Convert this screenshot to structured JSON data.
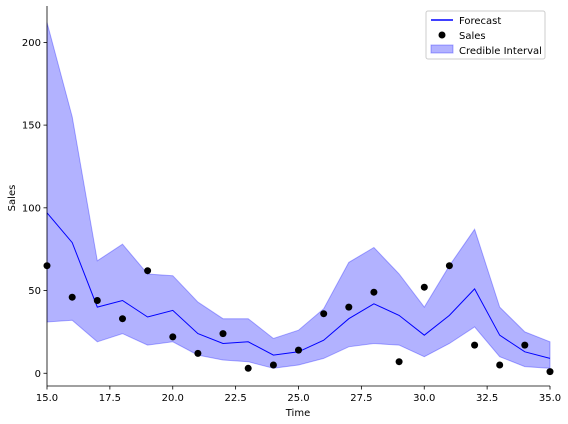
{
  "chart_data": {
    "type": "line",
    "title": "",
    "xlabel": "Time",
    "ylabel": "Sales",
    "xlim": [
      15,
      35
    ],
    "ylim": [
      -7.7,
      222
    ],
    "xticks": [
      15.0,
      17.5,
      20.0,
      22.5,
      25.0,
      27.5,
      30.0,
      32.5,
      35.0
    ],
    "xtick_labels": [
      "15.0",
      "17.5",
      "20.0",
      "22.5",
      "25.0",
      "27.5",
      "30.0",
      "32.5",
      "35.0"
    ],
    "yticks": [
      0,
      50,
      100,
      150,
      200
    ],
    "ytick_labels": [
      "0",
      "50",
      "100",
      "150",
      "200"
    ],
    "grid": false,
    "legend_position": "top-right",
    "series": [
      {
        "name": "Forecast",
        "kind": "line",
        "color": "#0000ff",
        "x": [
          15,
          16,
          17,
          18,
          19,
          20,
          21,
          22,
          23,
          24,
          25,
          26,
          27,
          28,
          29,
          30,
          31,
          32,
          33,
          34,
          35
        ],
        "y": [
          97,
          79,
          40,
          44,
          34,
          38,
          24,
          18,
          19,
          11,
          13,
          20,
          33,
          42,
          35,
          23,
          35,
          51,
          23,
          13,
          9
        ]
      },
      {
        "name": "Sales",
        "kind": "scatter",
        "color": "#000000",
        "x": [
          15,
          16,
          17,
          18,
          19,
          20,
          21,
          22,
          23,
          24,
          25,
          26,
          27,
          28,
          29,
          30,
          31,
          32,
          33,
          34,
          35
        ],
        "y": [
          65,
          46,
          44,
          33,
          62,
          22,
          12,
          24,
          3,
          5,
          14,
          36,
          40,
          49,
          7,
          52,
          65,
          17,
          5,
          17,
          1
        ]
      },
      {
        "name": "Credible Interval",
        "kind": "band",
        "color": "#0000ff",
        "x": [
          15,
          16,
          17,
          18,
          19,
          20,
          21,
          22,
          23,
          24,
          25,
          26,
          27,
          28,
          29,
          30,
          31,
          32,
          33,
          34,
          35
        ],
        "lower": [
          31,
          32,
          19,
          24,
          17,
          19,
          11,
          8,
          7,
          3,
          5,
          9,
          16,
          18,
          17,
          10,
          18,
          28,
          10,
          4,
          3
        ],
        "upper": [
          212,
          155,
          68,
          78,
          60,
          59,
          43,
          33,
          33,
          21,
          26,
          39,
          67,
          76,
          60,
          40,
          65,
          87,
          40,
          25,
          19
        ]
      }
    ],
    "legend": [
      "Forecast",
      "Sales",
      "Credible Interval"
    ]
  }
}
